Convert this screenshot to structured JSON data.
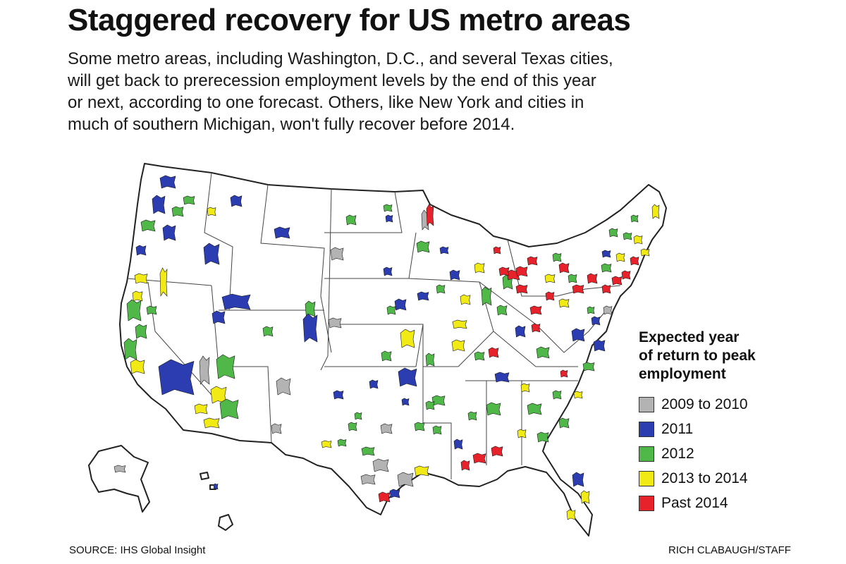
{
  "title": "Staggered recovery for US metro areas",
  "subtitle_lines": [
    "Some metro areas, including Washington, D.C., and several Texas cities,",
    "will get back to prerecession employment levels by the end of this year",
    "or next, according to one forecast. Others, like New York and cities in",
    "much of southern Michigan, won't fully recover before 2014."
  ],
  "legend": {
    "title_lines": [
      "Expected year",
      "of return to peak",
      "employment"
    ],
    "items": [
      {
        "label": "2009 to 2010",
        "color": "#b3b3b3"
      },
      {
        "label": "2011",
        "color": "#2b3db0"
      },
      {
        "label": "2012",
        "color": "#4fb848"
      },
      {
        "label": "2013 to 2014",
        "color": "#f2ea15"
      },
      {
        "label": "Past 2014",
        "color": "#e8222b"
      }
    ]
  },
  "source": "SOURCE: IHS Global Insight",
  "credit": "RICH CLABAUGH/STAFF"
}
